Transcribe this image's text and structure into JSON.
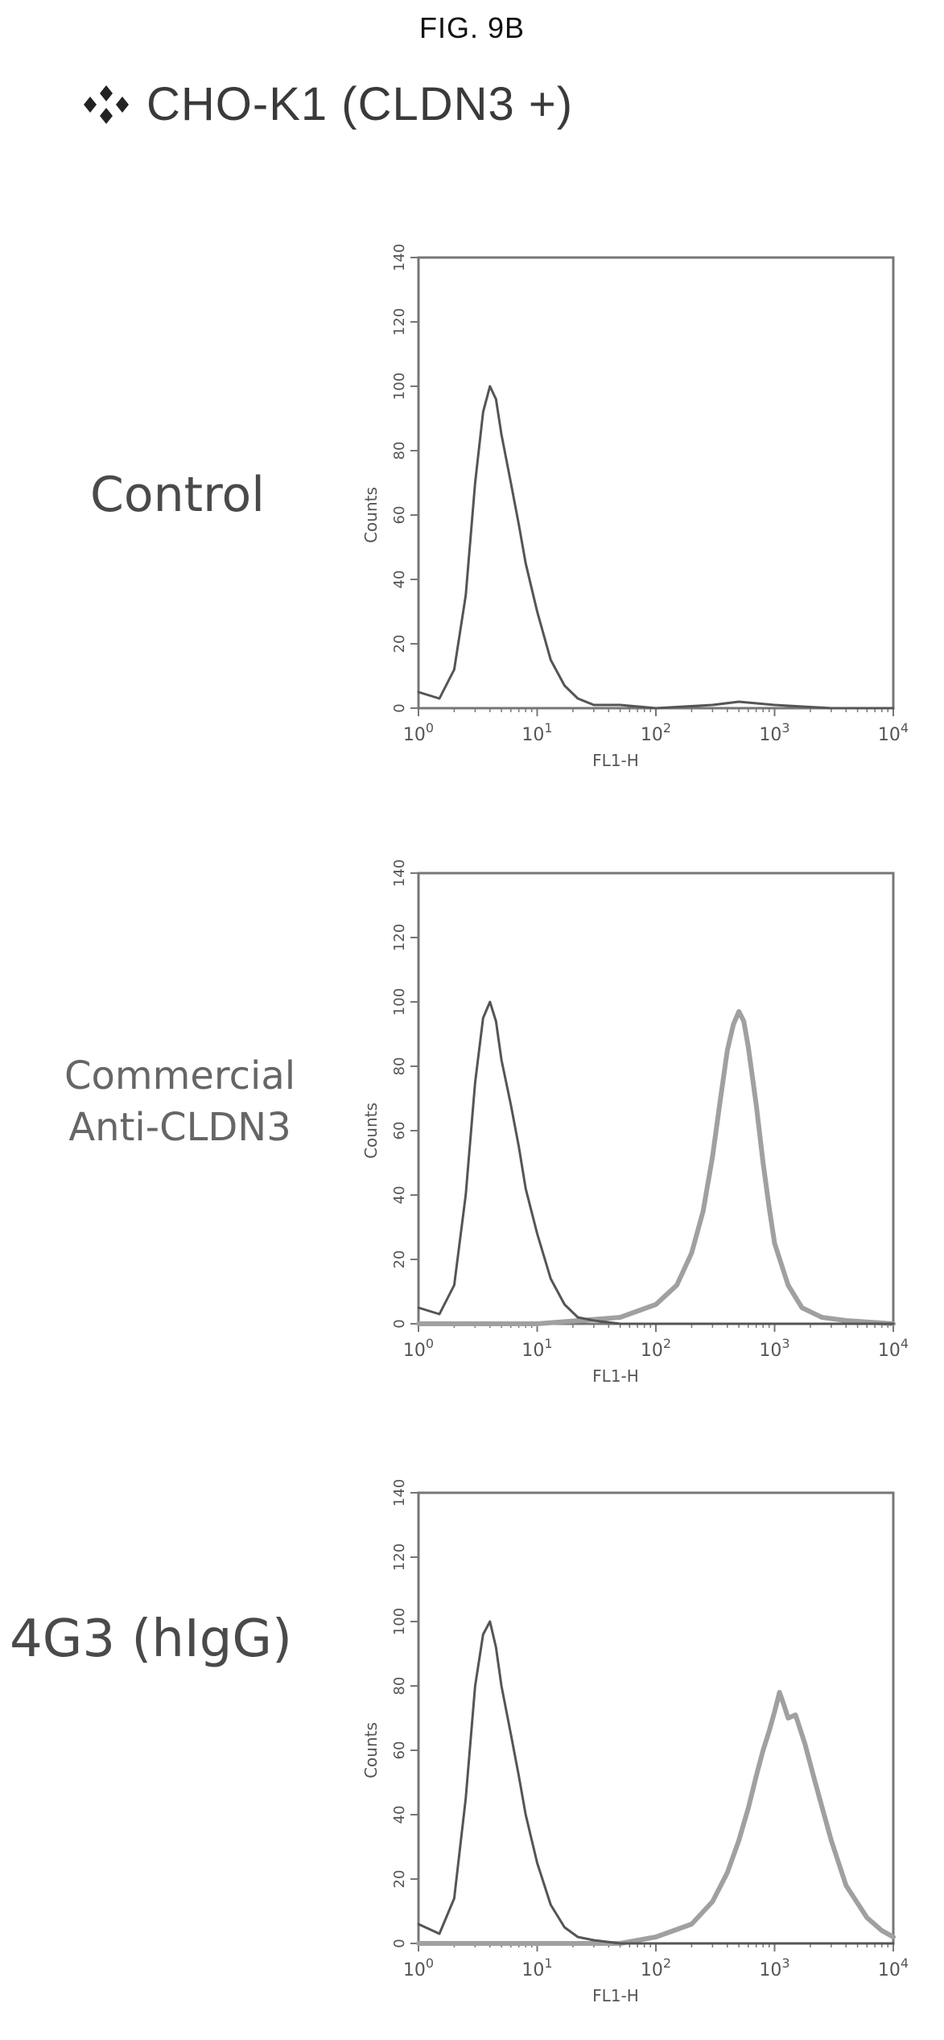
{
  "figure_label": "FIG. 9B",
  "cell_line": "CHO-K1 (CLDN3 +)",
  "icon": "four-diamond-icon",
  "colors": {
    "frame": "#777777",
    "isotype_trace": "#555555",
    "stained_trace": "#a0a0a0",
    "text": "#4a4a4a"
  },
  "chart_data": [
    {
      "type": "line",
      "panel_label": "Control",
      "xlabel": "FL1-H",
      "ylabel": "Counts",
      "x_scale": "log",
      "xlim": [
        1,
        10000
      ],
      "x_ticks": [
        "10^0",
        "10^1",
        "10^2",
        "10^3",
        "10^4"
      ],
      "ylim": [
        0,
        140
      ],
      "y_ticks": [
        0,
        20,
        40,
        60,
        80,
        100,
        120,
        140
      ],
      "grid": false,
      "series": [
        {
          "x": [
            1.0,
            1.5,
            2.0,
            2.5,
            3.0,
            3.5,
            4.0,
            4.5,
            5.0,
            6.0,
            7.0,
            8.0,
            10.0,
            13.0,
            17.0,
            22.0,
            30.0,
            50.0,
            100.0,
            300.0,
            500.0,
            1000.0,
            3000.0,
            10000.0
          ],
          "y": [
            5,
            3,
            12,
            35,
            70,
            92,
            100,
            96,
            85,
            70,
            57,
            45,
            30,
            15,
            7,
            3,
            1,
            1,
            0,
            1,
            2,
            1,
            0,
            0
          ]
        }
      ]
    },
    {
      "type": "line",
      "panel_label": "Commercial\nAnti-CLDN3",
      "xlabel": "FL1-H",
      "ylabel": "Counts",
      "x_scale": "log",
      "xlim": [
        1,
        10000
      ],
      "x_ticks": [
        "10^0",
        "10^1",
        "10^2",
        "10^3",
        "10^4"
      ],
      "ylim": [
        0,
        140
      ],
      "y_ticks": [
        0,
        20,
        40,
        60,
        80,
        100,
        120,
        140
      ],
      "grid": false,
      "series": [
        {
          "x": [
            1.0,
            1.5,
            2.0,
            2.5,
            3.0,
            3.5,
            4.0,
            4.5,
            5.0,
            6.0,
            7.0,
            8.0,
            10.0,
            13.0,
            17.0,
            22.0,
            30.0,
            50.0,
            100.0,
            1000.0,
            10000.0
          ],
          "y": [
            5,
            3,
            12,
            40,
            75,
            95,
            100,
            94,
            82,
            68,
            55,
            42,
            28,
            14,
            6,
            2,
            1,
            0,
            0,
            0,
            0
          ]
        },
        {
          "x": [
            1.0,
            10.0,
            50.0,
            100.0,
            150.0,
            200.0,
            250.0,
            300.0,
            350.0,
            400.0,
            450.0,
            500.0,
            550.0,
            600.0,
            700.0,
            800.0,
            900.0,
            1000.0,
            1300.0,
            1700.0,
            2500.0,
            4000.0,
            10000.0
          ],
          "y": [
            0,
            0,
            2,
            6,
            12,
            22,
            35,
            52,
            70,
            85,
            93,
            97,
            94,
            86,
            68,
            50,
            36,
            25,
            12,
            5,
            2,
            1,
            0
          ]
        }
      ]
    },
    {
      "type": "line",
      "panel_label": "4G3 (hIgG)",
      "xlabel": "FL1-H",
      "ylabel": "Counts",
      "x_scale": "log",
      "xlim": [
        1,
        10000
      ],
      "x_ticks": [
        "10^0",
        "10^1",
        "10^2",
        "10^3",
        "10^4"
      ],
      "ylim": [
        0,
        140
      ],
      "y_ticks": [
        0,
        20,
        40,
        60,
        80,
        100,
        120,
        140
      ],
      "grid": false,
      "series": [
        {
          "x": [
            1.0,
            1.5,
            2.0,
            2.5,
            3.0,
            3.5,
            4.0,
            4.5,
            5.0,
            6.0,
            7.0,
            8.0,
            10.0,
            13.0,
            17.0,
            22.0,
            30.0,
            50.0,
            100.0,
            1000.0,
            10000.0
          ],
          "y": [
            6,
            3,
            14,
            45,
            80,
            96,
            100,
            92,
            80,
            65,
            52,
            40,
            25,
            12,
            5,
            2,
            1,
            0,
            0,
            0,
            0
          ]
        },
        {
          "x": [
            1.0,
            50.0,
            100.0,
            200.0,
            300.0,
            400.0,
            500.0,
            600.0,
            700.0,
            800.0,
            900.0,
            1000.0,
            1100.0,
            1200.0,
            1300.0,
            1500.0,
            1800.0,
            2200.0,
            3000.0,
            4000.0,
            6000.0,
            8000.0,
            10000.0
          ],
          "y": [
            0,
            0,
            2,
            6,
            13,
            22,
            32,
            42,
            52,
            60,
            66,
            72,
            78,
            74,
            70,
            71,
            62,
            50,
            32,
            18,
            8,
            4,
            2
          ]
        }
      ]
    }
  ]
}
